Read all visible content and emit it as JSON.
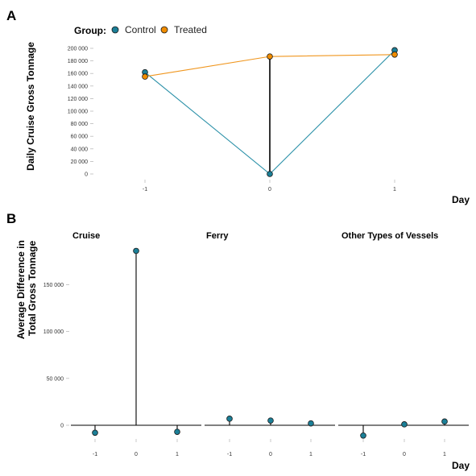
{
  "figure": {
    "panels": [
      "A",
      "B"
    ]
  },
  "chart_data": [
    {
      "panel": "A",
      "type": "line",
      "xlabel": "Day",
      "ylabel": "Daily Cruise Gross Tonnage",
      "x": [
        -1,
        0,
        1
      ],
      "x_tick_labels": [
        "-1",
        "0",
        "1"
      ],
      "xlim": [
        -1,
        1
      ],
      "ylim": [
        0,
        200000
      ],
      "y_ticks": [
        0,
        20000,
        40000,
        60000,
        80000,
        100000,
        120000,
        140000,
        160000,
        180000,
        200000
      ],
      "y_tick_labels": [
        "0",
        "20 000",
        "40 000",
        "60 000",
        "80 000",
        "100 000",
        "120 000",
        "140 000",
        "160 000",
        "180 000",
        "200 000"
      ],
      "grid": false,
      "legend": {
        "title": "Group:",
        "position": "top-left",
        "entries": [
          "Control",
          "Treated"
        ]
      },
      "series": [
        {
          "name": "Control",
          "color": "#2a90a8",
          "point_color": "#1b7f97",
          "values": [
            162000,
            0,
            197000
          ]
        },
        {
          "name": "Treated",
          "color": "#f0961e",
          "point_color": "#f08c00",
          "values": [
            155000,
            187000,
            190000
          ]
        }
      ],
      "segment": {
        "x": 0,
        "from": 0,
        "to": 187000,
        "color": "#000000"
      }
    },
    {
      "panel": "B",
      "type": "scatter",
      "style": "lollipop",
      "xlabel": "Day",
      "ylabel": "Average Difference in Total Gross Tonnage",
      "ylabel_lines": [
        "Average Difference in",
        "Total Gross Tonnage"
      ],
      "x": [
        -1,
        0,
        1
      ],
      "x_tick_labels": [
        "-1",
        "0",
        "1"
      ],
      "ylim": [
        -12000,
        190000
      ],
      "y_ticks": [
        0,
        50000,
        100000,
        150000
      ],
      "y_tick_labels": [
        "0",
        "50 000",
        "100 000",
        "150 000"
      ],
      "grid": false,
      "point_color": "#1b7f97",
      "facets": [
        {
          "title": "Cruise",
          "values": [
            -8000,
            186000,
            -7000
          ]
        },
        {
          "title": "Ferry",
          "values": [
            7000,
            5000,
            2000
          ]
        },
        {
          "title": "Other Types of Vessels",
          "values": [
            -11000,
            1000,
            4000
          ]
        }
      ]
    }
  ]
}
